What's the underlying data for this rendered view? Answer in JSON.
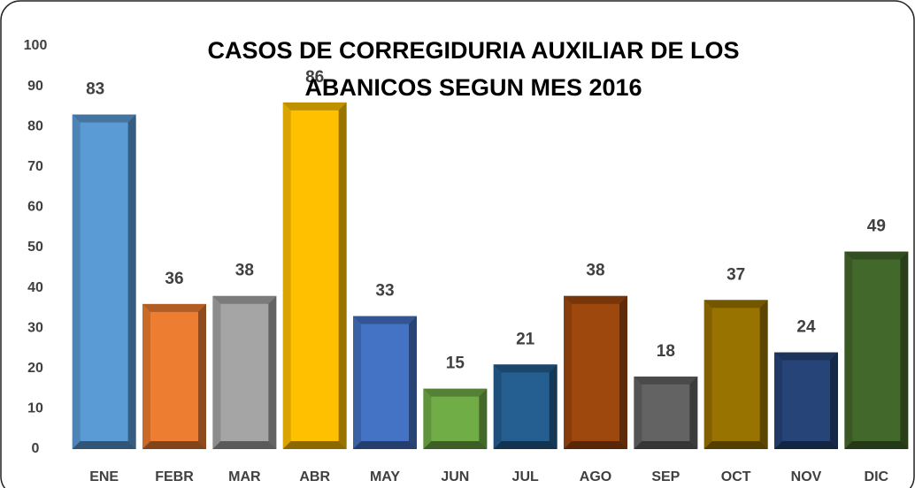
{
  "chart_data": {
    "type": "bar",
    "title": "CASOS DE CORREGIDURIA AUXILIAR DE LOS ABANICOS SEGUN MES 2016",
    "categories": [
      "ENE",
      "FEBR",
      "MAR",
      "ABR",
      "MAY",
      "JUN",
      "JUL",
      "AGO",
      "SEP",
      "OCT",
      "NOV",
      "DIC"
    ],
    "values": [
      83,
      36,
      38,
      86,
      33,
      15,
      21,
      38,
      18,
      37,
      24,
      49
    ],
    "colors": [
      "#5b9bd5",
      "#ed7d31",
      "#a5a5a5",
      "#ffc000",
      "#4472c4",
      "#70ad47",
      "#255e91",
      "#9e480e",
      "#636363",
      "#997300",
      "#264478",
      "#43682b"
    ],
    "ylim": [
      0,
      100
    ],
    "yticks": [
      0,
      10,
      20,
      30,
      40,
      50,
      60,
      70,
      80,
      90,
      100
    ],
    "grid": false
  }
}
